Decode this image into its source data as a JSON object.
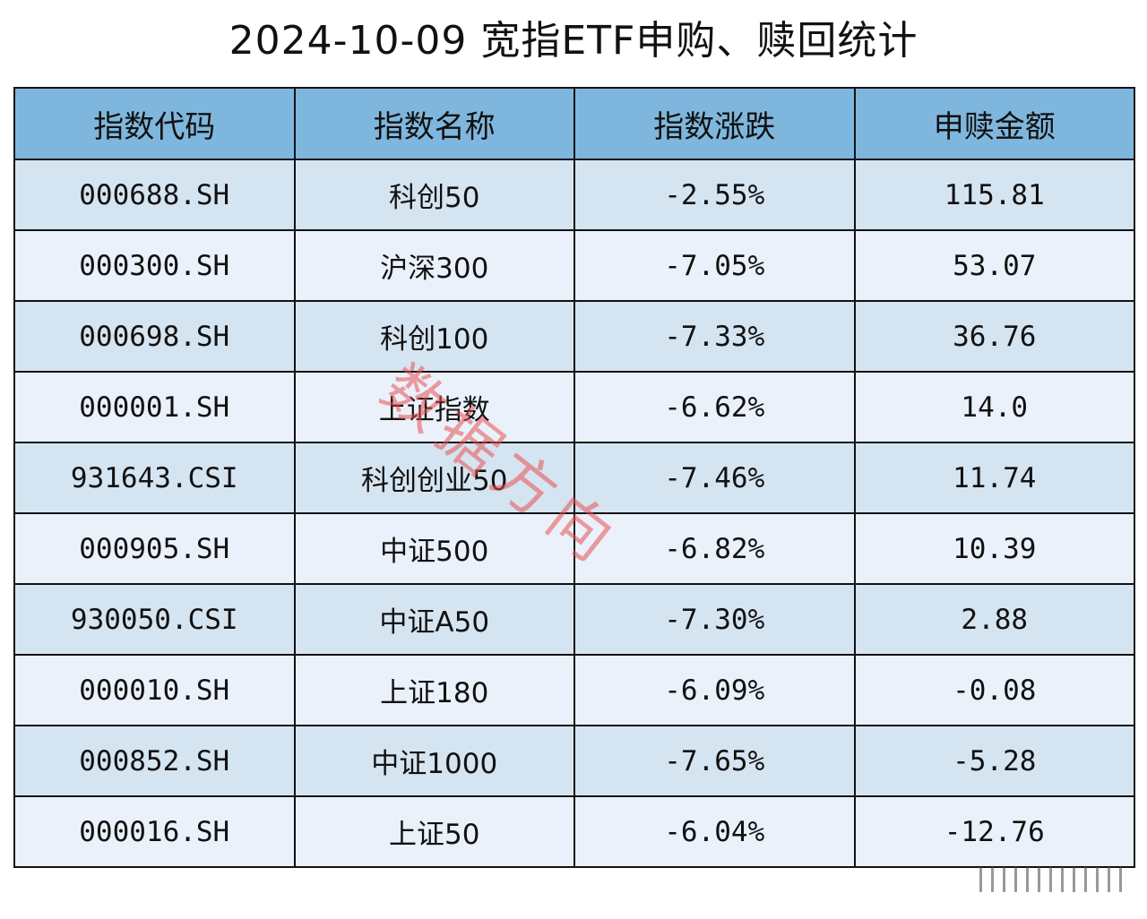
{
  "title": "2024-10-09 宽指ETF申购、赎回统计",
  "watermark": "数据方向",
  "headers": [
    "指数代码",
    "指数名称",
    "指数涨跌",
    "申赎金额"
  ],
  "rows": [
    {
      "code": "000688.SH",
      "name": "科创50",
      "change": "-2.55%",
      "amount": "115.81"
    },
    {
      "code": "000300.SH",
      "name": "沪深300",
      "change": "-7.05%",
      "amount": "53.07"
    },
    {
      "code": "000698.SH",
      "name": "科创100",
      "change": "-7.33%",
      "amount": "36.76"
    },
    {
      "code": "000001.SH",
      "name": "上证指数",
      "change": "-6.62%",
      "amount": "14.0"
    },
    {
      "code": "931643.CSI",
      "name": "科创创业50",
      "change": "-7.46%",
      "amount": "11.74"
    },
    {
      "code": "000905.SH",
      "name": "中证500",
      "change": "-6.82%",
      "amount": "10.39"
    },
    {
      "code": "930050.CSI",
      "name": "中证A50",
      "change": "-7.30%",
      "amount": "2.88"
    },
    {
      "code": "000010.SH",
      "name": "上证180",
      "change": "-6.09%",
      "amount": "-0.08"
    },
    {
      "code": "000852.SH",
      "name": "中证1000",
      "change": "-7.65%",
      "amount": "-5.28"
    },
    {
      "code": "000016.SH",
      "name": "上证50",
      "change": "-6.04%",
      "amount": "-12.76"
    }
  ],
  "colors": {
    "header_bg": "#7fb6dd",
    "row_odd": "#d5e4f1",
    "row_even": "#eaf1fb",
    "watermark": "#e85050"
  }
}
